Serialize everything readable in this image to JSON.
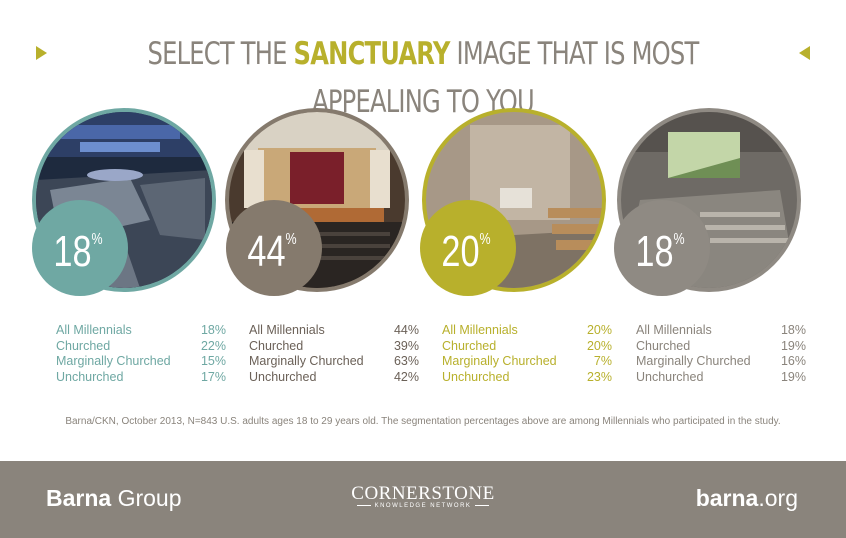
{
  "title": {
    "pre": "SELECT THE ",
    "highlight": "SANCTUARY",
    "post": " IMAGE THAT IS MOST APPEALING TO YOU"
  },
  "colors": {
    "teal": "#6fa8a3",
    "brown": "#857a6d",
    "olive": "#b8b02c",
    "gray": "#8f8a83",
    "footer": "#8a847c"
  },
  "chart_data": {
    "type": "table",
    "title": "Select the sanctuary image that is most appealing to you",
    "categories": [
      "All Millennials",
      "Churched",
      "Marginally Churched",
      "Unchurched"
    ],
    "options": [
      {
        "name": "Modern arena sanctuary",
        "headline": "18",
        "headline_unit": "%",
        "labels": [
          "All Millennials",
          "Churched",
          "Marginally Churched",
          "Unchurched"
        ],
        "values": [
          "18%",
          "22%",
          "15%",
          "17%"
        ],
        "color": "#6fa8a3"
      },
      {
        "name": "Traditional stage auditorium",
        "headline": "44",
        "headline_unit": "%",
        "labels": [
          "All Millennials",
          "Churched",
          "Marginally Churched",
          "Unchurched"
        ],
        "values": [
          "44%",
          "39%",
          "63%",
          "42%"
        ],
        "color": "#857a6d"
      },
      {
        "name": "Brick chapel",
        "headline": "20",
        "headline_unit": "%",
        "labels": [
          "All Millennials",
          "Churched",
          "Marginally Churched",
          "Unchurched"
        ],
        "values": [
          "20%",
          "20%",
          "7%",
          "23%"
        ],
        "color": "#b8b02c"
      },
      {
        "name": "Screen hall",
        "headline": "18",
        "headline_unit": "%",
        "labels": [
          "All Millennials",
          "Churched",
          "Marginally Churched",
          "Unchurched"
        ],
        "values": [
          "18%",
          "19%",
          "16%",
          "19%"
        ],
        "color": "#8f8a83"
      }
    ]
  },
  "note": "Barna/CKN, October 2013, N=843 U.S. adults ages 18 to 29 years old. The segmentation percentages above are among Millennials who participated in the study.",
  "footer": {
    "barna_bold": "Barna",
    "barna_rest": " Group",
    "cornerstone_name": "CORNERSTONE",
    "cornerstone_sub": "KNOWLEDGE NETWORK",
    "site_bold": "barna",
    "site_rest": ".org"
  }
}
